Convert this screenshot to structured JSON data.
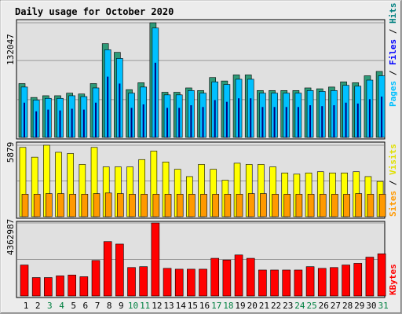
{
  "header": {
    "title": "Daily usage for October 2020"
  },
  "colors": {
    "background": "#ececec",
    "frame_outer": "#a0a0a0",
    "panel_bg": "#e0e0e0",
    "title": "#0000a0",
    "grid": "#999999",
    "hits": "#008080",
    "hits_top": "#2e9a78",
    "files": "#00c0ff",
    "pages": "#00c0ff",
    "pages_dark": "#000080",
    "visits": "#ffff00",
    "sites": "#ff9900",
    "kbytes": "#ff0000",
    "weekend_label": "#008040",
    "weekday_label": "#000000"
  },
  "chart_data": [
    {
      "type": "bar",
      "panel": "hits",
      "ymax_label": "132047",
      "ylim": [
        0,
        132047
      ],
      "categories": [
        "1",
        "2",
        "3",
        "4",
        "5",
        "6",
        "7",
        "8",
        "9",
        "10",
        "11",
        "12",
        "13",
        "14",
        "15",
        "16",
        "17",
        "18",
        "19",
        "20",
        "21",
        "22",
        "23",
        "24",
        "25",
        "26",
        "27",
        "28",
        "29",
        "30",
        "31"
      ],
      "weekend": [
        3,
        4,
        10,
        11,
        17,
        18,
        24,
        25,
        31
      ],
      "legend": [
        {
          "label": "Pages",
          "color_key": "pages"
        },
        {
          "label": "Files",
          "color_key": "files"
        },
        {
          "label": "Hits",
          "color_key": "hits"
        }
      ],
      "series": [
        {
          "name": "Hits",
          "values": [
            62000,
            46000,
            48000,
            48000,
            51000,
            50000,
            62000,
            108000,
            98000,
            55000,
            63000,
            132047,
            52000,
            52000,
            57000,
            54000,
            69000,
            65000,
            72000,
            72000,
            54000,
            54000,
            54000,
            54000,
            57000,
            56000,
            58000,
            64000,
            63000,
            71000,
            76000
          ]
        },
        {
          "name": "Files",
          "values": [
            58000,
            43000,
            45000,
            45000,
            48000,
            47000,
            57000,
            101000,
            91000,
            51000,
            58000,
            126000,
            49000,
            49000,
            54000,
            51000,
            64000,
            61000,
            67000,
            67000,
            51000,
            51000,
            51000,
            51000,
            54000,
            53000,
            54000,
            60000,
            59000,
            66000,
            71000
          ]
        },
        {
          "name": "Pages",
          "values": [
            40000,
            30000,
            32000,
            31000,
            33000,
            32000,
            40000,
            70000,
            62000,
            34000,
            38000,
            86000,
            34000,
            34000,
            37000,
            35000,
            43000,
            41000,
            45000,
            45000,
            35000,
            35000,
            35000,
            35000,
            37000,
            36000,
            37000,
            40000,
            39000,
            44000,
            47000
          ]
        }
      ]
    },
    {
      "type": "bar",
      "panel": "visits",
      "ymax_label": "5879",
      "ylim": [
        0,
        5879
      ],
      "categories": [
        "1",
        "2",
        "3",
        "4",
        "5",
        "6",
        "7",
        "8",
        "9",
        "10",
        "11",
        "12",
        "13",
        "14",
        "15",
        "16",
        "17",
        "18",
        "19",
        "20",
        "21",
        "22",
        "23",
        "24",
        "25",
        "26",
        "27",
        "28",
        "29",
        "30",
        "31"
      ],
      "legend": [
        {
          "label": "Sites",
          "color_key": "sites"
        },
        {
          "label": "Visits",
          "color_key": "visits"
        }
      ],
      "series": [
        {
          "name": "Visits",
          "values": [
            5700,
            4900,
            5879,
            5300,
            5200,
            4300,
            5700,
            4100,
            4100,
            4100,
            4700,
            5400,
            4500,
            3900,
            3300,
            4300,
            3900,
            3000,
            4400,
            4300,
            4300,
            4100,
            3600,
            3500,
            3600,
            3700,
            3600,
            3600,
            3700,
            3300,
            2900
          ]
        },
        {
          "name": "Sites",
          "values": [
            1850,
            1850,
            1900,
            1900,
            1850,
            1850,
            1900,
            1950,
            1900,
            1850,
            1850,
            1850,
            1850,
            1850,
            1850,
            1850,
            1850,
            1850,
            1850,
            1900,
            1900,
            1850,
            1850,
            1850,
            1850,
            1850,
            1850,
            1850,
            1900,
            1850,
            1850
          ]
        }
      ]
    },
    {
      "type": "bar",
      "panel": "kbytes",
      "ymax_label": "4362987",
      "ylim": [
        0,
        4362987
      ],
      "categories": [
        "1",
        "2",
        "3",
        "4",
        "5",
        "6",
        "7",
        "8",
        "9",
        "10",
        "11",
        "12",
        "13",
        "14",
        "15",
        "16",
        "17",
        "18",
        "19",
        "20",
        "21",
        "22",
        "23",
        "24",
        "25",
        "26",
        "27",
        "28",
        "29",
        "30",
        "31"
      ],
      "legend": [
        {
          "label": "KBytes",
          "color_key": "kbytes"
        }
      ],
      "series": [
        {
          "name": "KBytes",
          "values": [
            1850000,
            1100000,
            1100000,
            1200000,
            1250000,
            1150000,
            2120000,
            3250000,
            3100000,
            1700000,
            1750000,
            4362987,
            1650000,
            1600000,
            1600000,
            1600000,
            2250000,
            2150000,
            2450000,
            2250000,
            1550000,
            1550000,
            1550000,
            1550000,
            1750000,
            1650000,
            1700000,
            1850000,
            1950000,
            2320000,
            2520000
          ]
        }
      ]
    }
  ]
}
